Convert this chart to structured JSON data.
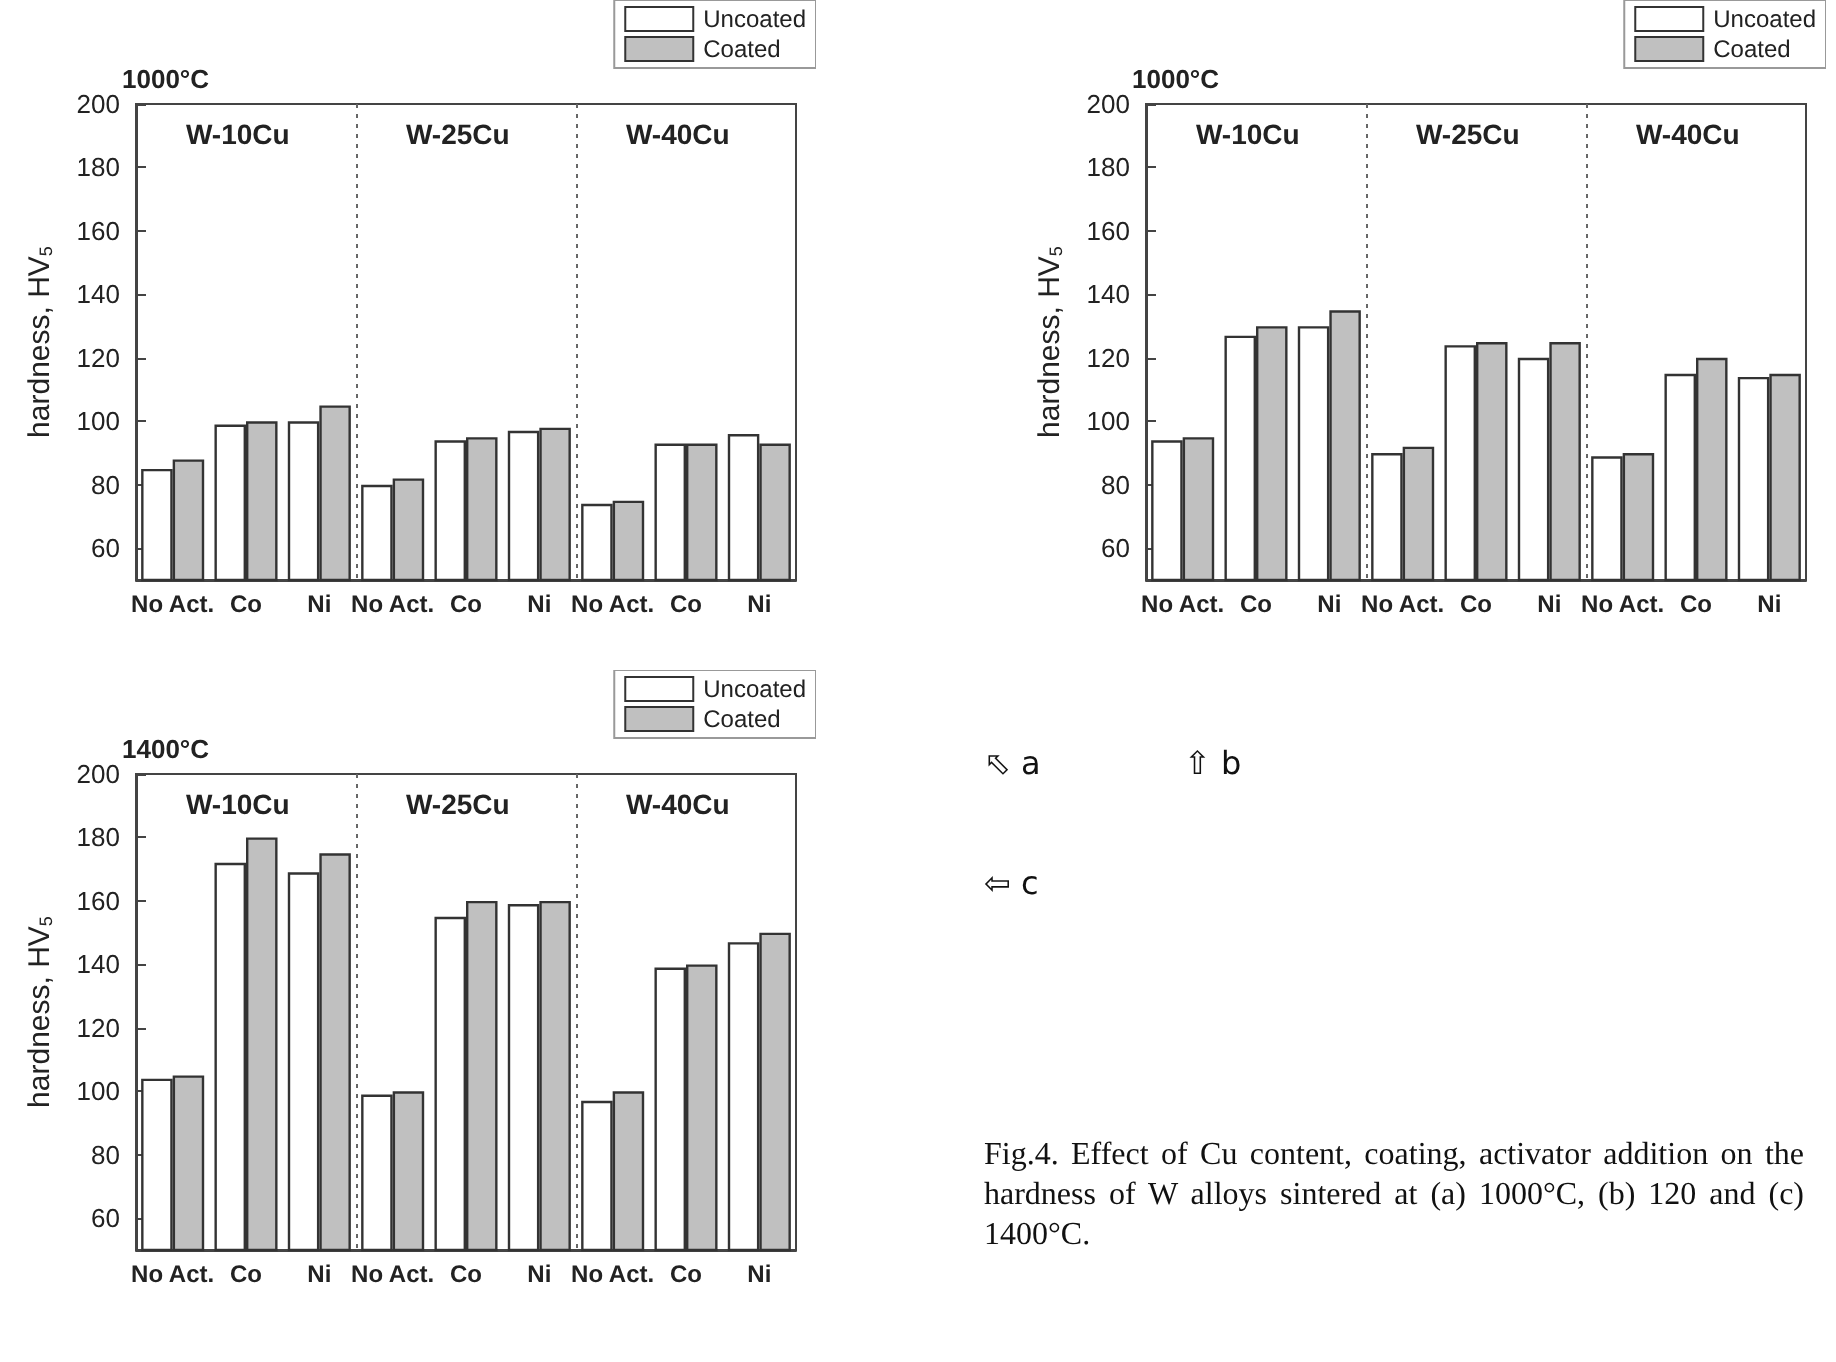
{
  "chart_data": [
    {
      "type": "bar",
      "title": "1000°C",
      "ylabel": "hardness, HV$_{5}$",
      "categories": [
        "No Act.",
        "Co",
        "Ni",
        "No Act.",
        "Co",
        "Ni",
        "No Act.",
        "Co",
        "Ni"
      ],
      "series": [
        {
          "name": "Uncoated",
          "color": "#ffffff",
          "values": [
            85,
            99,
            100,
            80,
            94,
            97,
            74,
            93,
            96
          ]
        },
        {
          "name": "Coated",
          "color": "#c0c0c0",
          "values": [
            88,
            100,
            105,
            82,
            95,
            98,
            75,
            93,
            93
          ]
        }
      ],
      "annotations": [
        "W-10Cu",
        "W-25Cu",
        "W-40Cu"
      ],
      "ylim": [
        50,
        200
      ],
      "yticks": [
        60,
        80,
        100,
        120,
        140,
        160,
        180,
        200
      ],
      "grid": false,
      "legend": "top right"
    },
    {
      "type": "bar",
      "title": "1000°C",
      "ylabel": "hardness, HV$_{5}$",
      "categories": [
        "No Act.",
        "Co",
        "Ni",
        "No Act.",
        "Co",
        "Ni",
        "No Act.",
        "Co",
        "Ni"
      ],
      "series": [
        {
          "name": "Uncoated",
          "color": "#ffffff",
          "values": [
            94,
            127,
            130,
            90,
            124,
            120,
            89,
            115,
            114
          ]
        },
        {
          "name": "Coated",
          "color": "#c0c0c0",
          "values": [
            95,
            130,
            135,
            92,
            125,
            125,
            90,
            120,
            115
          ]
        }
      ],
      "annotations": [
        "W-10Cu",
        "W-25Cu",
        "W-40Cu"
      ],
      "ylim": [
        50,
        200
      ],
      "yticks": [
        60,
        80,
        100,
        120,
        140,
        160,
        180,
        200
      ],
      "grid": false,
      "legend": "top right"
    },
    {
      "type": "bar",
      "title": "1400°C",
      "ylabel": "hardness, HV$_{5}$",
      "categories": [
        "No Act.",
        "Co",
        "Ni",
        "No Act.",
        "Co",
        "Ni",
        "No Act.",
        "Co",
        "Ni"
      ],
      "series": [
        {
          "name": "Uncoated",
          "color": "#ffffff",
          "values": [
            104,
            172,
            169,
            99,
            155,
            159,
            97,
            139,
            147
          ]
        },
        {
          "name": "Coated",
          "color": "#c0c0c0",
          "values": [
            105,
            180,
            175,
            100,
            160,
            160,
            100,
            140,
            150
          ]
        }
      ],
      "annotations": [
        "W-10Cu",
        "W-25Cu",
        "W-40Cu"
      ],
      "ylim": [
        50,
        200
      ],
      "yticks": [
        60,
        80,
        100,
        120,
        140,
        160,
        180,
        200
      ],
      "grid": false,
      "legend": "top right"
    },
    {
      "type": "other",
      "annotations": [
        "⬁ a",
        "⇧ b",
        "⇦ c",
        "Fig.4. Effect of Cu content, coating, activator addition on the hardness of W alloys sintered at (a) 1000°C, (b) 120 and (c) 1400°C."
      ]
    }
  ]
}
